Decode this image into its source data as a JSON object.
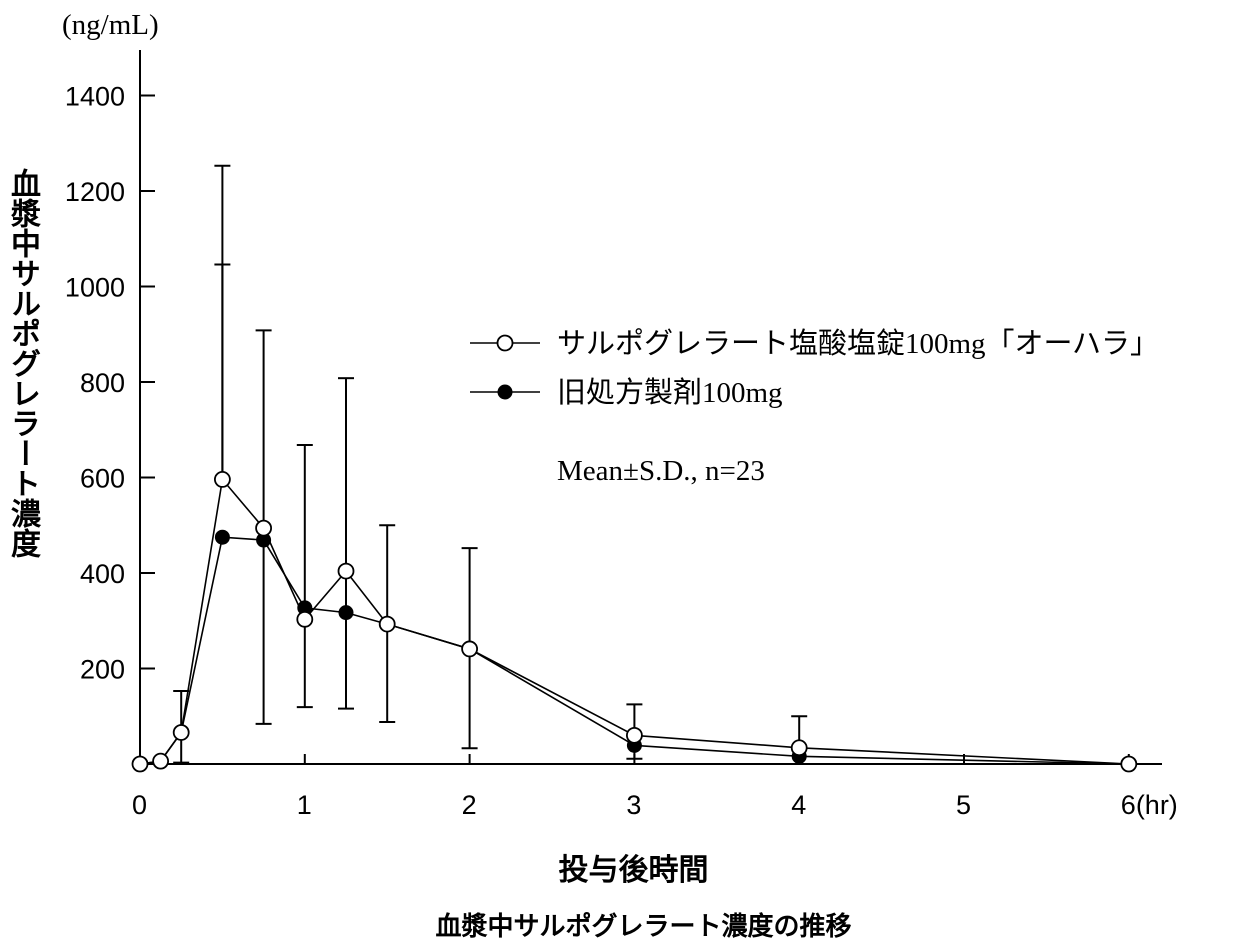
{
  "chart_data": {
    "type": "line",
    "y_unit_label": "(ng/mL)",
    "ylabel": "血漿中サルポグレラート濃度",
    "xlabel": "投与後時間",
    "caption": "血漿中サルポグレラート濃度の推移",
    "annotation": "Mean±S.D., n=23",
    "xlim": [
      0,
      6
    ],
    "ylim": [
      0,
      1400
    ],
    "x_ticks": [
      "0",
      "1",
      "2",
      "3",
      "4",
      "5",
      "6(hr)"
    ],
    "x_tick_values": [
      0,
      1,
      2,
      3,
      4,
      5,
      6
    ],
    "y_ticks": [
      "200",
      "400",
      "600",
      "800",
      "1000",
      "1200",
      "1400"
    ],
    "y_tick_values": [
      200,
      400,
      600,
      800,
      1000,
      1200,
      1400
    ],
    "grid": false,
    "legend_position": "right",
    "x": [
      0,
      0.125,
      0.25,
      0.5,
      0.75,
      1,
      1.25,
      1.5,
      2,
      3,
      4,
      6
    ],
    "series": [
      {
        "name": "サルポグレラート塩酸塩錠100mg「オーハラ」",
        "marker": "open-circle",
        "values": [
          0,
          6,
          66,
          596,
          494,
          303,
          404,
          293,
          241,
          60,
          34,
          0
        ]
      },
      {
        "name": "旧処方製剤100mg",
        "marker": "filled-circle",
        "values": [
          0,
          6,
          66,
          475,
          469,
          327,
          317,
          293,
          241,
          39,
          16,
          0
        ]
      }
    ],
    "error_bars": [
      {
        "x": 0.25,
        "upper": 153,
        "lower": 3
      },
      {
        "x": 0.5,
        "upper": 1253
      },
      {
        "x": 0.5,
        "upper": 1046
      },
      {
        "x": 0.75,
        "upper": 908,
        "lower": 84
      },
      {
        "x": 1,
        "upper": 668,
        "lower": 119
      },
      {
        "x": 1.25,
        "upper": 808,
        "lower": 116
      },
      {
        "x": 1.5,
        "upper": 500,
        "lower": 88
      },
      {
        "x": 2,
        "upper": 452,
        "lower": 33
      },
      {
        "x": 3,
        "upper": 125,
        "lower": 11
      },
      {
        "x": 4,
        "upper": 100
      }
    ]
  }
}
